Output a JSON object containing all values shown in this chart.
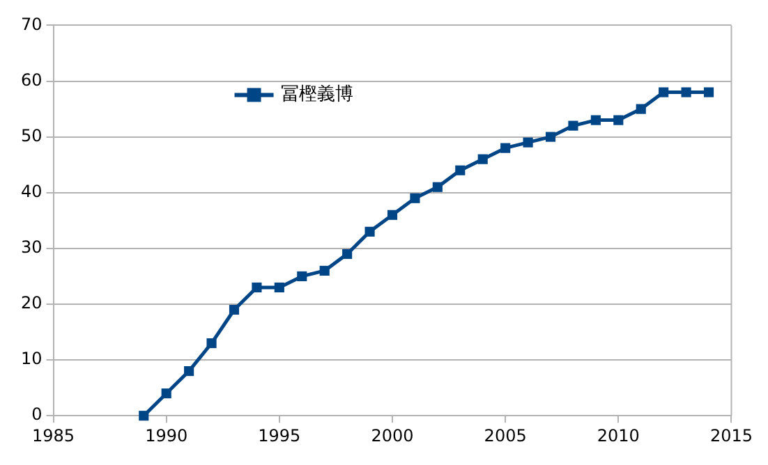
{
  "chart_data": {
    "type": "line",
    "x": [
      1989,
      1990,
      1991,
      1992,
      1993,
      1994,
      1995,
      1996,
      1997,
      1998,
      1999,
      2000,
      2001,
      2002,
      2003,
      2004,
      2005,
      2006,
      2007,
      2008,
      2009,
      2010,
      2011,
      2012,
      2013,
      2014
    ],
    "series": [
      {
        "name": "冨樫義博",
        "color": "#004586",
        "values": [
          0,
          4,
          8,
          13,
          19,
          23,
          23,
          25,
          26,
          29,
          33,
          36,
          39,
          41,
          44,
          46,
          48,
          49,
          50,
          52,
          53,
          53,
          55,
          58,
          58,
          58
        ]
      }
    ],
    "xlim": [
      1985,
      2015
    ],
    "xticks": [
      1985,
      1990,
      1995,
      2000,
      2005,
      2010,
      2015
    ],
    "ylim": [
      0,
      70
    ],
    "yticks": [
      0,
      10,
      20,
      30,
      40,
      50,
      60,
      70
    ],
    "grid": "y",
    "legend": "top left",
    "marker": "square",
    "line_style": "solid"
  }
}
